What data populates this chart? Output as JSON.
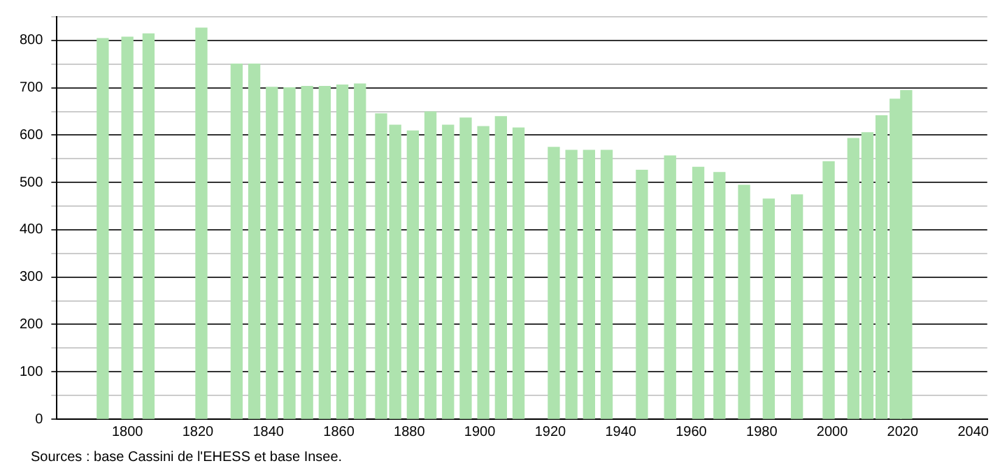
{
  "chart_data": {
    "type": "bar",
    "x": [
      1793,
      1800,
      1806,
      1821,
      1831,
      1836,
      1841,
      1846,
      1851,
      1856,
      1861,
      1866,
      1872,
      1876,
      1881,
      1886,
      1891,
      1896,
      1901,
      1906,
      1911,
      1921,
      1926,
      1931,
      1936,
      1946,
      1954,
      1962,
      1968,
      1975,
      1982,
      1990,
      1999,
      2006,
      2010,
      2014,
      2018,
      2021
    ],
    "values": [
      804,
      807,
      814,
      826,
      750,
      750,
      701,
      700,
      703,
      703,
      706,
      708,
      645,
      621,
      609,
      649,
      621,
      636,
      618,
      639,
      615,
      574,
      568,
      568,
      568,
      526,
      556,
      532,
      521,
      494,
      465,
      474,
      544,
      593,
      605,
      641,
      676,
      694
    ],
    "color": "#aee3ae",
    "xlim": [
      1780,
      2044
    ],
    "xticks": [
      1800,
      1820,
      1840,
      1860,
      1880,
      1900,
      1920,
      1940,
      1960,
      1980,
      2000,
      2020,
      2040
    ],
    "ylim": [
      0,
      850
    ],
    "yticks": [
      0,
      {
        "value": 50,
        "label": null
      },
      100,
      {
        "value": 150,
        "label": null
      },
      200,
      {
        "value": 250,
        "label": null
      },
      300,
      {
        "value": 350,
        "label": null
      },
      400,
      {
        "value": 450,
        "label": null
      },
      500,
      {
        "value": 550,
        "label": null
      },
      600,
      {
        "value": 650,
        "label": null
      },
      700,
      {
        "value": 750,
        "label": null
      },
      800,
      {
        "value": 850,
        "label": null
      }
    ],
    "grid": "y",
    "legend": false,
    "annotations": [
      "Sources : base Cassini de l'EHESS et base Insee."
    ]
  }
}
